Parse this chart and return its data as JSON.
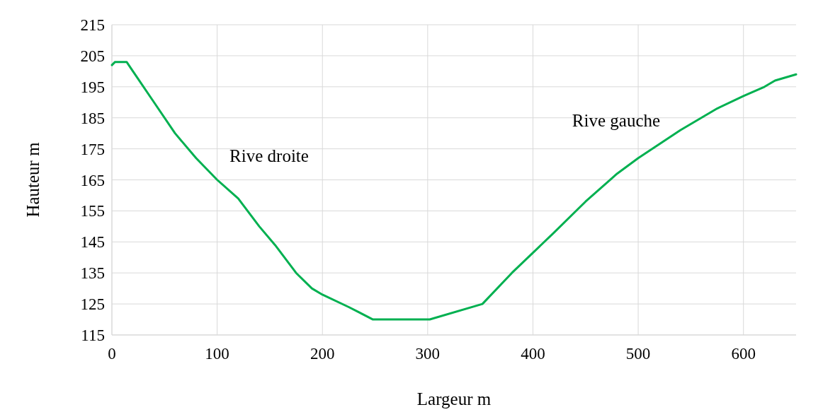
{
  "chart_data": {
    "type": "line",
    "xlabel": "Largeur m",
    "ylabel": "Hauteur m",
    "x": [
      0,
      3,
      14,
      20,
      40,
      60,
      80,
      100,
      120,
      140,
      155,
      175,
      190,
      200,
      225,
      248,
      302,
      352,
      380,
      420,
      450,
      480,
      500,
      540,
      575,
      600,
      620,
      630,
      650
    ],
    "series": [
      {
        "color": "#00b050",
        "values": [
          202,
          203,
          203,
          200,
          190,
          180,
          172,
          165,
          159,
          150,
          144,
          135,
          130,
          128,
          124,
          120,
          120,
          125,
          135,
          148,
          158,
          167,
          172,
          181,
          188,
          192,
          195,
          197,
          199
        ]
      }
    ],
    "xlim": [
      0,
      650
    ],
    "xticks": [
      0,
      100,
      200,
      300,
      400,
      500,
      600
    ],
    "ylim": [
      115,
      215
    ],
    "yticks": [
      115,
      125,
      135,
      145,
      155,
      165,
      175,
      185,
      195,
      205,
      215
    ],
    "grid": true,
    "marker": "none",
    "line_style": "solid",
    "annotations": [
      "Rive droite",
      "Rive gauche"
    ]
  }
}
